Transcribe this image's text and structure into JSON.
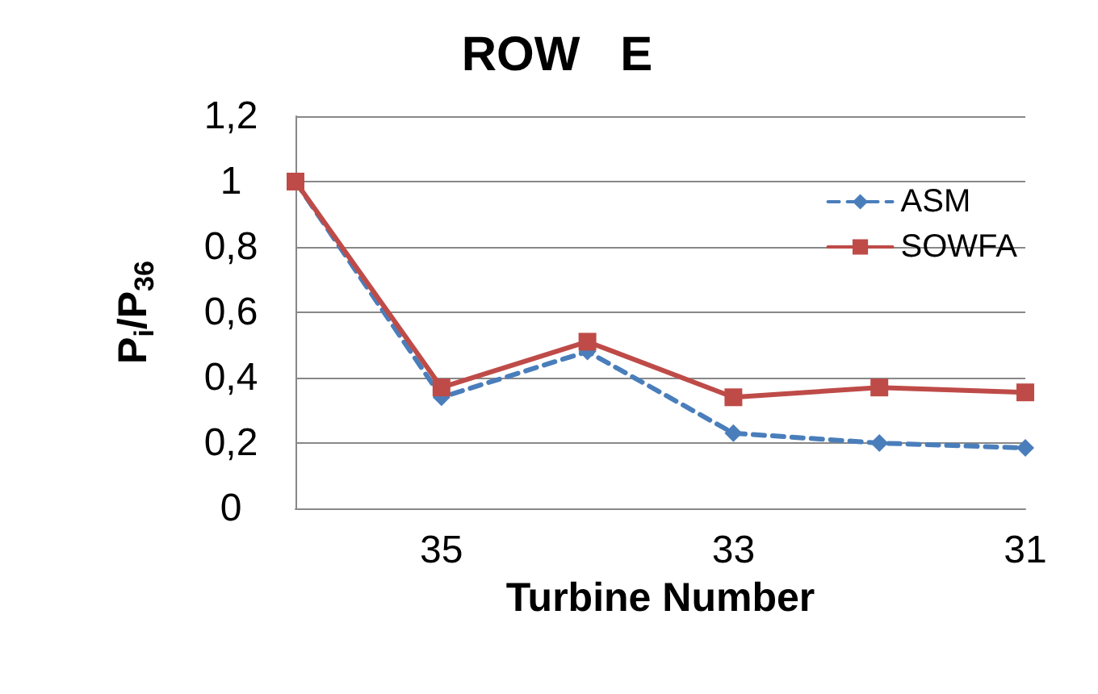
{
  "chart_data": {
    "type": "line",
    "title": "ROW   E",
    "xlabel": "Turbine Number",
    "ylabel": "P$_{i}$/P$_{36}$",
    "categories": [
      null,
      "35",
      null,
      "33",
      null,
      "31"
    ],
    "series": [
      {
        "name": "ASM",
        "color": "#4a7ebb",
        "marker": "diamond",
        "line_style": "dashed",
        "values": [
          1,
          0.34,
          0.48,
          0.23,
          0.2,
          0.185
        ]
      },
      {
        "name": "SOWFA",
        "color": "#be4b48",
        "marker": "square",
        "line_style": "solid",
        "values": [
          1,
          0.37,
          0.51,
          0.34,
          0.37,
          0.355
        ]
      }
    ],
    "ylim": [
      0,
      1.2
    ],
    "yticks": [
      0,
      {
        "value": 0.2,
        "label": "0,2"
      },
      {
        "value": 0.4,
        "label": "0,4"
      },
      {
        "value": 0.6,
        "label": "0,6"
      },
      {
        "value": 0.8,
        "label": "0,8"
      },
      1,
      {
        "value": 1.2,
        "label": "1,2"
      }
    ],
    "grid": "y",
    "legend": "top right"
  }
}
